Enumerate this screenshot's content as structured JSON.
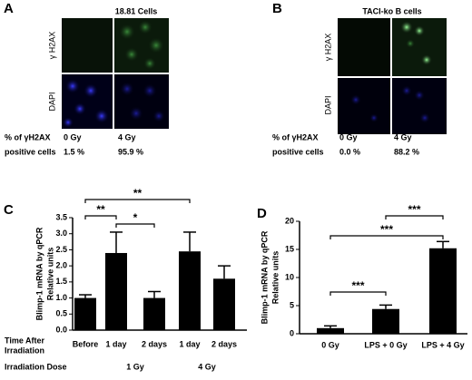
{
  "panel_a": {
    "letter": "A",
    "title": "18.81 Cells",
    "row_labels": [
      "γ H2AX",
      "DAPI"
    ],
    "stat_label_1": "% of γH2AX",
    "stat_label_2": "positive cells",
    "columns": [
      {
        "dose": "0 Gy",
        "percent": "1.5 %"
      },
      {
        "dose": "4 Gy",
        "percent": "95.9 %"
      }
    ]
  },
  "panel_b": {
    "letter": "B",
    "title": "TACI-ko B cells",
    "row_labels": [
      "γ H2AX",
      "DAPI"
    ],
    "stat_label_1": "% of γH2AX",
    "stat_label_2": "positive cells",
    "columns": [
      {
        "dose": "0 Gy",
        "percent": "0.0 %"
      },
      {
        "dose": "4 Gy",
        "percent": "88.2 %"
      }
    ]
  },
  "chart_data": [
    {
      "type": "bar",
      "letter": "C",
      "y_label": [
        "Blimp-1 mRNA by qPCR",
        "Relative units"
      ],
      "categories": [
        "Before",
        "1 day",
        "2 days",
        "1 day",
        "2 days"
      ],
      "values": [
        1.0,
        2.4,
        1.0,
        2.45,
        1.6
      ],
      "errors": [
        0.1,
        0.65,
        0.2,
        0.6,
        0.4
      ],
      "color": "#000000",
      "ylim": [
        0,
        3.5
      ],
      "yticks": [
        {
          "value": 0,
          "label": "0.0"
        },
        {
          "value": 0.5,
          "label": "0.5"
        },
        {
          "value": 1,
          "label": "1.0"
        },
        {
          "value": 1.5,
          "label": "1.5"
        },
        {
          "value": 2,
          "label": "2.0"
        },
        {
          "value": 2.5,
          "label": "2.5"
        },
        {
          "value": 3,
          "label": "3.0"
        },
        {
          "value": 3.5,
          "label": "3.5"
        }
      ],
      "row_label_1": [
        "Time After",
        "Irradiation"
      ],
      "row_label_2": "Irradiation Dose",
      "groups": [
        "1 Gy",
        "4 Gy"
      ],
      "annotations": [
        "**",
        "*",
        "**"
      ]
    },
    {
      "type": "bar",
      "letter": "D",
      "y_label": [
        "Blimp-1 mRNA by qPCR",
        "Relative units"
      ],
      "categories": [
        "0 Gy",
        "LPS + 0 Gy",
        "LPS + 4 Gy"
      ],
      "values": [
        1.0,
        4.4,
        15.2
      ],
      "errors": [
        0.4,
        0.7,
        1.2
      ],
      "color": "#000000",
      "ylim": [
        0,
        20
      ],
      "yticks": [
        0,
        5,
        10,
        15,
        20
      ],
      "annotations": [
        "***",
        "***",
        "***"
      ]
    }
  ]
}
